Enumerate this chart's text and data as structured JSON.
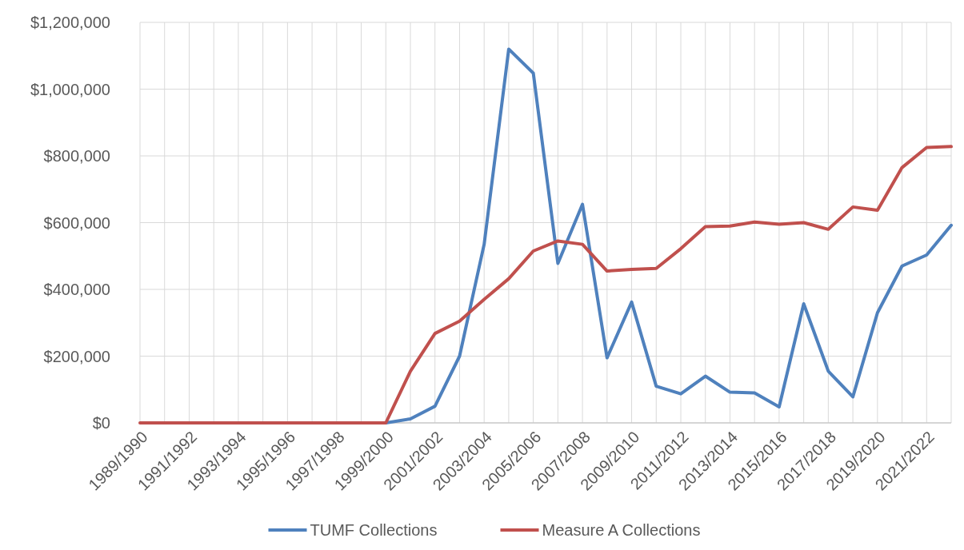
{
  "chart_data": {
    "type": "line",
    "categories": [
      "1989/1990",
      null,
      "1991/1992",
      null,
      "1993/1994",
      null,
      "1995/1996",
      null,
      "1997/1998",
      null,
      "1999/2000",
      null,
      "2001/2002",
      null,
      "2003/2004",
      null,
      "2005/2006",
      null,
      "2007/2008",
      null,
      "2009/2010",
      null,
      "2011/2012",
      null,
      "2013/2014",
      null,
      "2015/2016",
      null,
      "2017/2018",
      null,
      "2019/2020",
      null,
      "2021/2022",
      null
    ],
    "series": [
      {
        "name": "TUMF Collections",
        "color": "#4f81bd",
        "values": [
          null,
          null,
          null,
          null,
          null,
          null,
          null,
          null,
          null,
          null,
          0,
          12000,
          50000,
          200000,
          535000,
          1120000,
          1048000,
          478000,
          655000,
          195000,
          362000,
          110000,
          87000,
          140000,
          92000,
          90000,
          48000,
          357000,
          155000,
          78000,
          330000,
          470000,
          503000,
          592000
        ]
      },
      {
        "name": "Measure A Collections",
        "color": "#c0504d",
        "values": [
          0,
          0,
          0,
          0,
          0,
          0,
          0,
          0,
          0,
          0,
          0,
          155000,
          268000,
          305000,
          370000,
          432000,
          515000,
          545000,
          535000,
          455000,
          460000,
          463000,
          522000,
          588000,
          590000,
          602000,
          595000,
          600000,
          580000,
          647000,
          637000,
          765000,
          825000,
          828000
        ]
      }
    ],
    "ylim": [
      0,
      1200000
    ],
    "yticks": [
      {
        "value": 0,
        "label": "$0"
      },
      {
        "value": 200000,
        "label": "$200,000"
      },
      {
        "value": 400000,
        "label": "$400,000"
      },
      {
        "value": 600000,
        "label": "$600,000"
      },
      {
        "value": 800000,
        "label": "$800,000"
      },
      {
        "value": 1000000,
        "label": "$1,000,000"
      },
      {
        "value": 1200000,
        "label": "$1,200,000"
      }
    ],
    "grid": true,
    "legend": "bottom",
    "marker": "none",
    "line_style": "solid"
  }
}
